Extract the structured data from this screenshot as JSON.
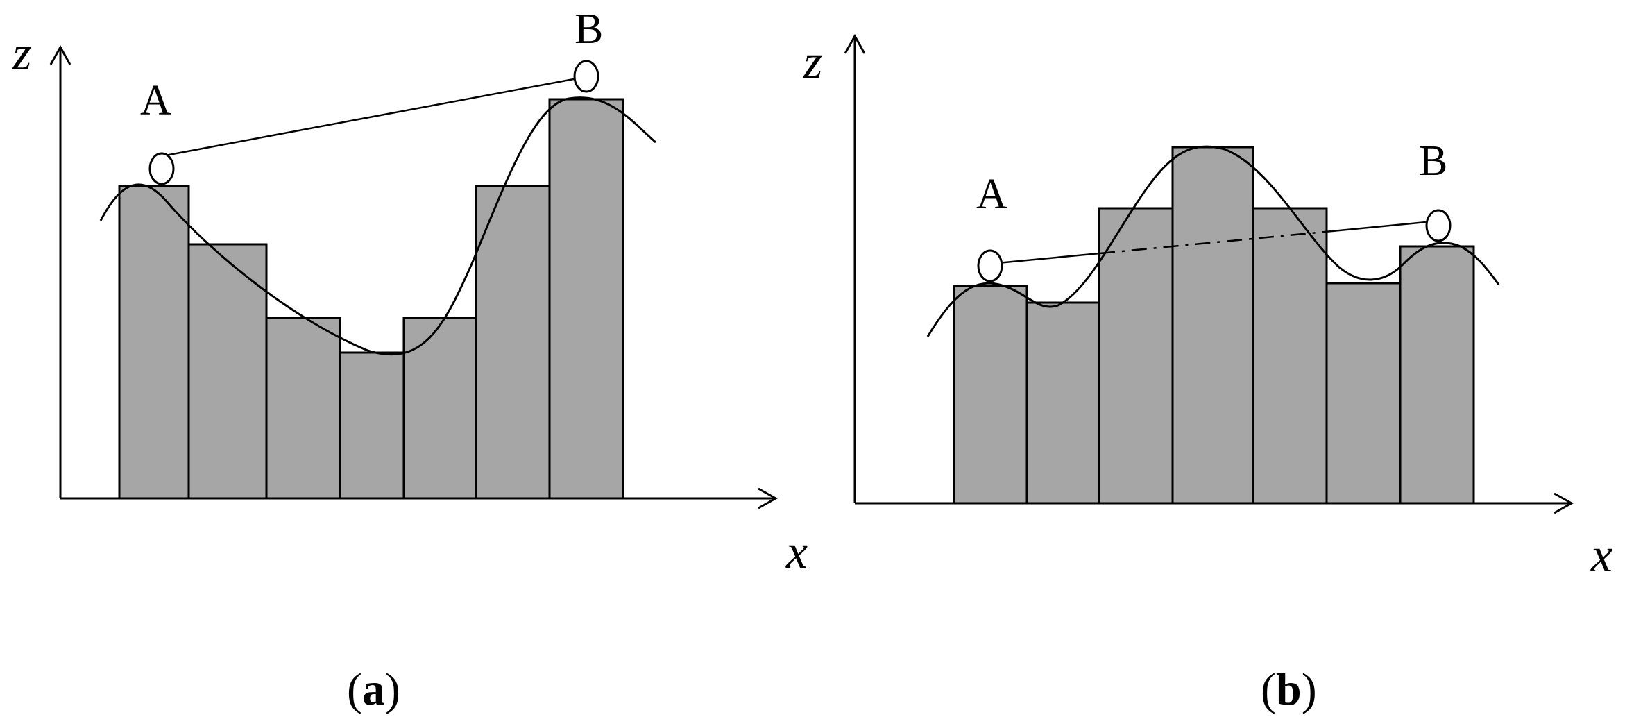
{
  "panels": [
    {
      "id": "a",
      "caption_open": "(",
      "caption_letter": "a",
      "caption_close": ")",
      "x_axis_label": "x",
      "z_axis_label": "z",
      "point_a_label": "A",
      "point_b_label": "B",
      "bar_heights": [
        0.78,
        0.635,
        0.455,
        0.36,
        0.455,
        0.78,
        1.0
      ],
      "line_of_sight": "clear"
    },
    {
      "id": "b",
      "caption_open": "(",
      "caption_letter": "b",
      "caption_close": ")",
      "x_axis_label": "x",
      "z_axis_label": "z",
      "point_a_label": "A",
      "point_b_label": "B",
      "bar_heights": [
        0.62,
        0.565,
        0.835,
        1.0,
        0.835,
        0.625,
        0.725
      ],
      "line_of_sight": "blocked"
    }
  ],
  "colors": {
    "bar_fill": "#a6a6a6",
    "stroke": "#000000"
  }
}
